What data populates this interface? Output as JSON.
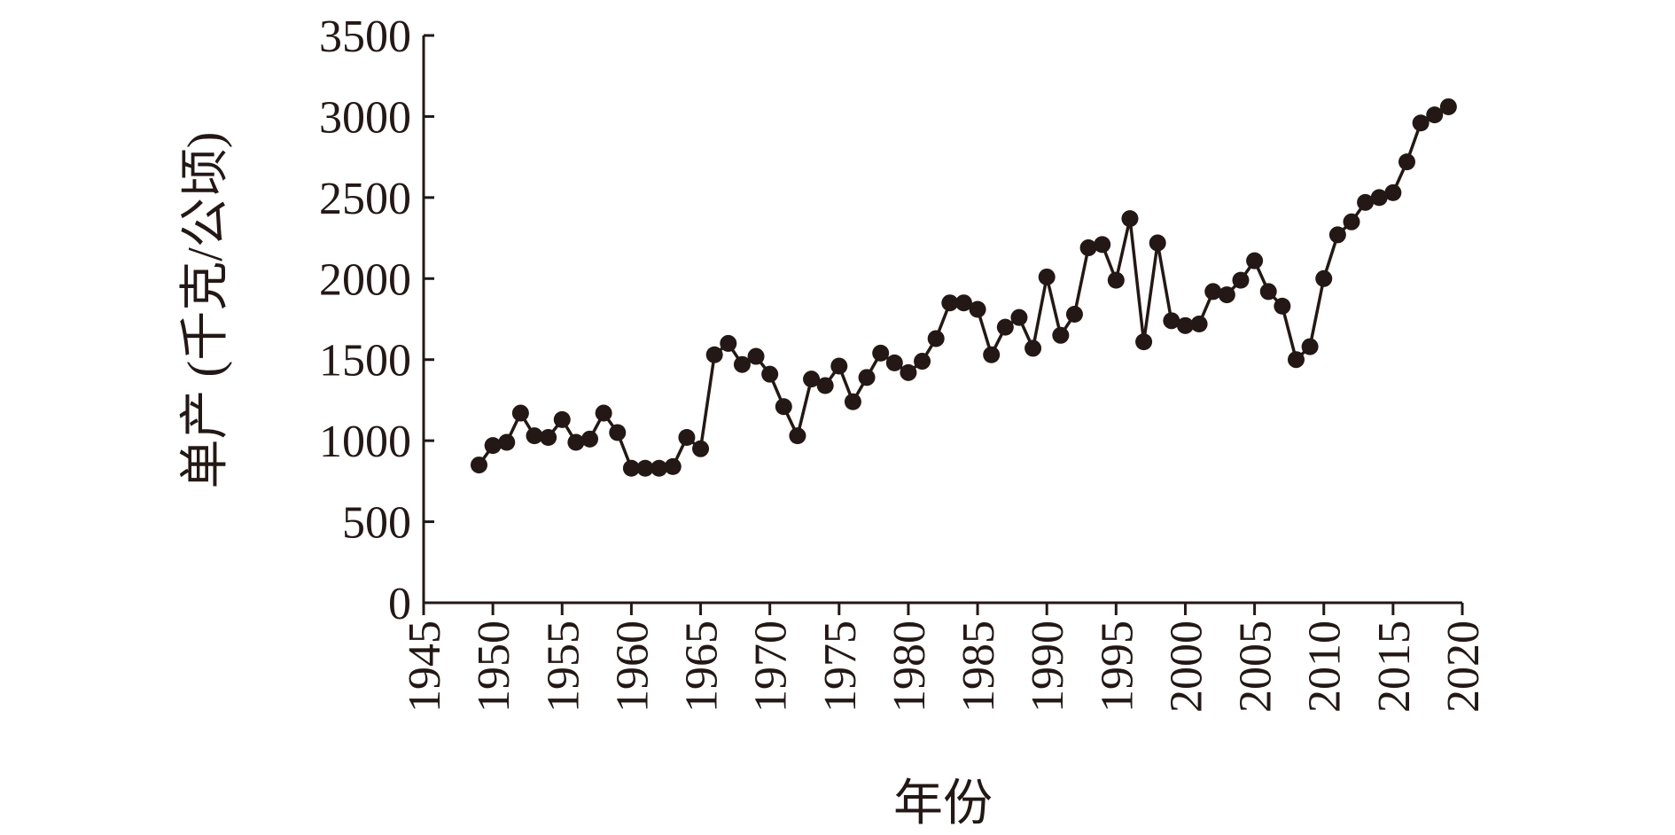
{
  "chart_data": {
    "type": "line",
    "title": "",
    "xlabel": "年份",
    "ylabel": "单产 (千克/公顷)",
    "xlim": [
      1945,
      2020
    ],
    "ylim": [
      0,
      3500
    ],
    "xticks": [
      1945,
      1950,
      1955,
      1960,
      1965,
      1970,
      1975,
      1980,
      1985,
      1990,
      1995,
      2000,
      2005,
      2010,
      2015,
      2020
    ],
    "yticks": [
      0,
      500,
      1000,
      1500,
      2000,
      2500,
      3000,
      3500
    ],
    "grid": false,
    "colors": {
      "line": "#231815",
      "marker": "#231815",
      "axis": "#231815"
    },
    "series": [
      {
        "x": [
          1949,
          1950,
          1951,
          1952,
          1953,
          1954,
          1955,
          1956,
          1957,
          1958,
          1959,
          1960,
          1961,
          1962,
          1963,
          1964,
          1965,
          1966,
          1967,
          1968,
          1969,
          1970,
          1971,
          1972,
          1973,
          1974,
          1975,
          1976,
          1977,
          1978,
          1979,
          1980,
          1981,
          1982,
          1983,
          1984,
          1985,
          1986,
          1987,
          1988,
          1989,
          1990,
          1991,
          1992,
          1993,
          1994,
          1995,
          1996,
          1997,
          1998,
          1999,
          2000,
          2001,
          2002,
          2003,
          2004,
          2005,
          2006,
          2007,
          2008,
          2009,
          2010,
          2011,
          2012,
          2013,
          2014,
          2015,
          2016,
          2017,
          2018,
          2019
        ],
        "y": [
          850,
          970,
          990,
          1170,
          1030,
          1020,
          1130,
          990,
          1010,
          1170,
          1050,
          830,
          830,
          830,
          840,
          1020,
          950,
          1530,
          1600,
          1470,
          1520,
          1410,
          1210,
          1030,
          1380,
          1340,
          1460,
          1240,
          1390,
          1540,
          1480,
          1420,
          1490,
          1630,
          1850,
          1850,
          1810,
          1530,
          1700,
          1760,
          1570,
          2010,
          1650,
          1780,
          2190,
          2210,
          1990,
          2370,
          1610,
          2220,
          1740,
          1710,
          1720,
          1920,
          1900,
          1990,
          2110,
          1920,
          1830,
          1500,
          1580,
          2000,
          2270,
          2350,
          2470,
          2500,
          2530,
          2720,
          2960,
          3010,
          3060
        ]
      }
    ]
  }
}
